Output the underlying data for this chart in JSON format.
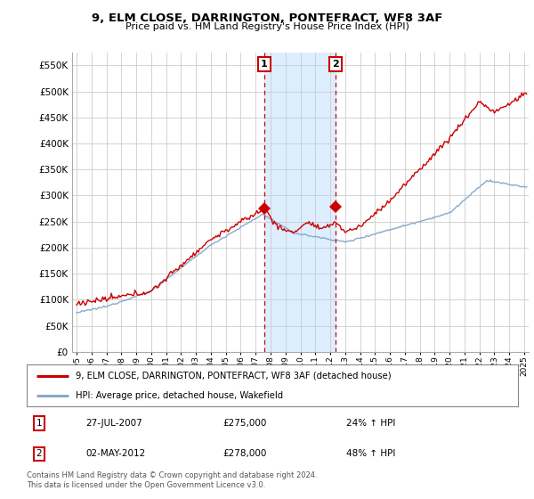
{
  "title": "9, ELM CLOSE, DARRINGTON, PONTEFRACT, WF8 3AF",
  "subtitle": "Price paid vs. HM Land Registry's House Price Index (HPI)",
  "yticks": [
    0,
    50000,
    100000,
    150000,
    200000,
    250000,
    300000,
    350000,
    400000,
    450000,
    500000,
    550000
  ],
  "ylim": [
    0,
    575000
  ],
  "legend_house": "9, ELM CLOSE, DARRINGTON, PONTEFRACT, WF8 3AF (detached house)",
  "legend_hpi": "HPI: Average price, detached house, Wakefield",
  "transaction1_date": "27-JUL-2007",
  "transaction1_price": 275000,
  "transaction1_pct": "24% ↑ HPI",
  "transaction2_date": "02-MAY-2012",
  "transaction2_price": 278000,
  "transaction2_pct": "48% ↑ HPI",
  "footer": "Contains HM Land Registry data © Crown copyright and database right 2024.\nThis data is licensed under the Open Government Licence v3.0.",
  "house_color": "#cc0000",
  "hpi_color": "#88aacc",
  "highlight_color": "#ddeeff",
  "transaction1_x": 2007.58,
  "transaction2_x": 2012.33,
  "xmin": 1994.7,
  "xmax": 2025.3
}
